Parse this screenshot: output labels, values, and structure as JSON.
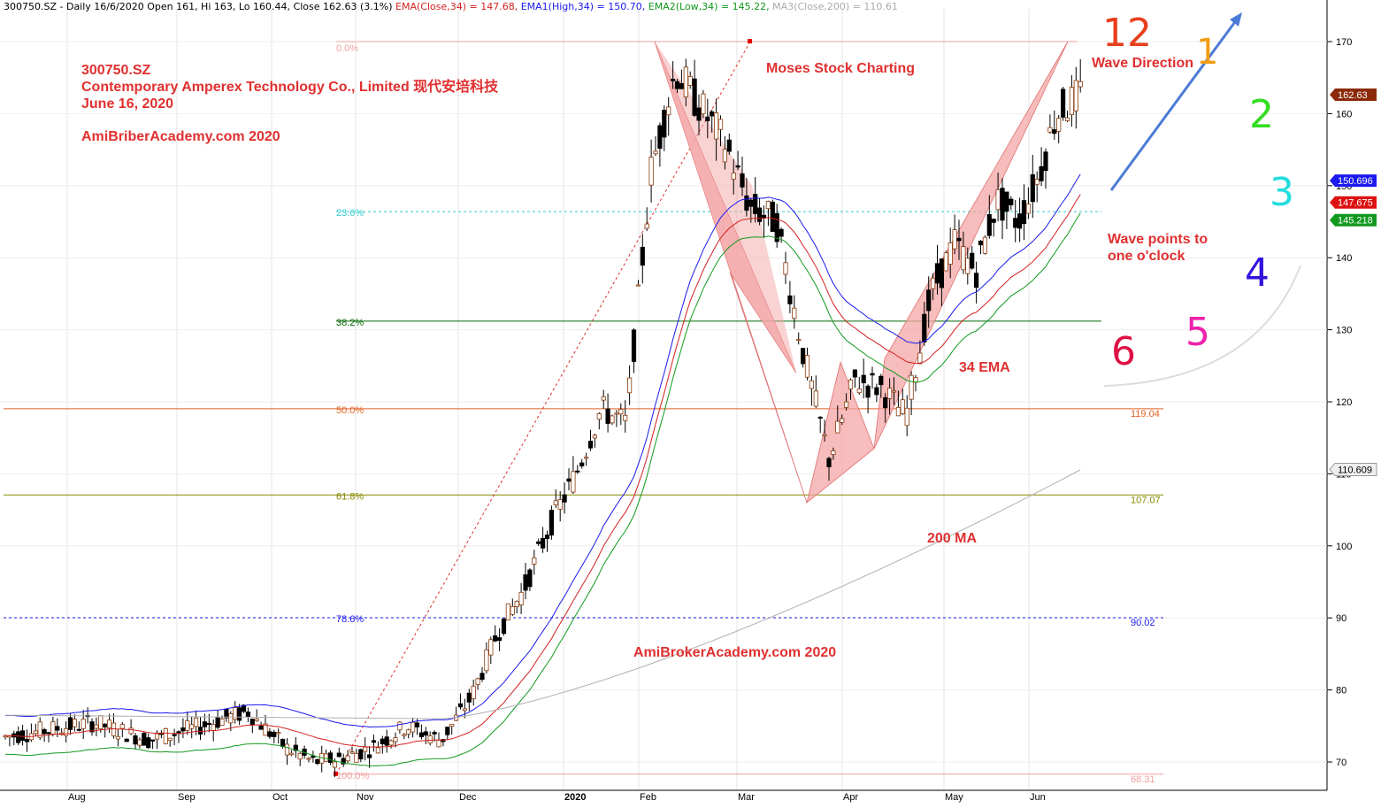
{
  "header": {
    "symbol_info": "300750.SZ - Daily 16/6/2020 Open 161, Hi 163, Lo 160.44, Close 162.63 (3.1%)",
    "ema": "EMA(Close,34) = 147.68,",
    "ema1": "EMA1(High,34) = 150.70,",
    "ema2": "EMA2(Low,34) = 145.22,",
    "ma3": "MA3(Close,200) = 110.61"
  },
  "annotations": {
    "ticker": "300750.SZ",
    "company": "Contemporary Amperex Technology Co., Limited 现代安培科技",
    "date": "June 16, 2020",
    "site1": "AmiBriberAcademy.com  2020",
    "site2": "AmiBrokerAcademy.com  2020",
    "moses": "Moses Stock Charting",
    "ema34": "34 EMA",
    "ma200": "200 MA",
    "wave_direction": "Wave Direction",
    "wave_points_1": "Wave points to",
    "wave_points_2": "one o'clock"
  },
  "clock": [
    {
      "label": "12",
      "color": "#e8401c"
    },
    {
      "label": "1",
      "color": "#f39c12"
    },
    {
      "label": "2",
      "color": "#33dd22"
    },
    {
      "label": "3",
      "color": "#22dddd"
    },
    {
      "label": "4",
      "color": "#3311dd"
    },
    {
      "label": "5",
      "color": "#ee22aa"
    },
    {
      "label": "6",
      "color": "#dd1144"
    }
  ],
  "colors": {
    "ema": "#d42020",
    "ema1": "#1a1aee",
    "ema2": "#11991e",
    "ma200": "#b0b0b0",
    "pattern_fill": "#f4a5a5",
    "annotation": "#e03030"
  },
  "chart_data": {
    "type": "candlestick",
    "ylim": [
      67,
      176
    ],
    "yticks": [
      70,
      80,
      90,
      100,
      110,
      120,
      130,
      140,
      150,
      160,
      170
    ],
    "months": [
      "Aug",
      "Sep",
      "Oct",
      "Nov",
      "Dec",
      "2020",
      "Feb",
      "Mar",
      "Apr",
      "May",
      "Jun"
    ],
    "price_path": [
      [
        "Jul",
        73.5
      ],
      [
        "Aug",
        75.5
      ],
      [
        "Aug",
        73
      ],
      [
        "Sep",
        75
      ],
      [
        "Sep",
        77
      ],
      [
        "Oct",
        72
      ],
      [
        "Oct",
        70
      ],
      [
        "Oct",
        70.5
      ],
      [
        "Nov",
        72
      ],
      [
        "Nov",
        75
      ],
      [
        "Nov",
        73
      ],
      [
        "Dec",
        79
      ],
      [
        "Dec",
        88
      ],
      [
        "Dec",
        94
      ],
      [
        "Dec",
        103
      ],
      [
        "Jan",
        110
      ],
      [
        "Jan",
        119
      ],
      [
        "Jan",
        117
      ],
      [
        "Feb",
        152
      ],
      [
        "Feb",
        166
      ],
      [
        "Feb",
        161
      ],
      [
        "Feb",
        156
      ],
      [
        "Mar",
        147
      ],
      [
        "Mar",
        145
      ],
      [
        "Mar",
        127
      ],
      [
        "Mar",
        112
      ],
      [
        "Apr",
        123
      ],
      [
        "Apr",
        122
      ],
      [
        "Apr",
        118
      ],
      [
        "Apr",
        135
      ],
      [
        "May",
        142
      ],
      [
        "May",
        138
      ],
      [
        "May",
        148
      ],
      [
        "May",
        145
      ],
      [
        "Jun",
        151
      ],
      [
        "Jun",
        160
      ],
      [
        "Jun",
        162.63
      ]
    ],
    "series": [
      {
        "name": "EMA(Close,34)",
        "last": 147.675
      },
      {
        "name": "EMA1(High,34)",
        "last": 150.696
      },
      {
        "name": "EMA2(Low,34)",
        "last": 145.218
      },
      {
        "name": "MA3(Close,200)",
        "last": 110.609
      }
    ],
    "last_close": 162.63,
    "price_tags": [
      "162.63",
      "150.696",
      "147.675",
      "145.218",
      "110.609"
    ],
    "fibonacci": [
      {
        "label": "0.0%",
        "price": 170.0,
        "value_label": ""
      },
      {
        "label": "23.6%",
        "price": 146.4,
        "value_label": ""
      },
      {
        "label": "38.2%",
        "price": 131.2,
        "value_label": ""
      },
      {
        "label": "50.0%",
        "price": 119.04,
        "value_label": "119.04"
      },
      {
        "label": "61.8%",
        "price": 107.07,
        "value_label": "107.07"
      },
      {
        "label": "78.6%",
        "price": 90.02,
        "value_label": "90.02"
      },
      {
        "label": "100.0%",
        "price": 68.31,
        "value_label": "68.31"
      }
    ],
    "pattern_points": [
      [
        "Feb",
        170
      ],
      [
        "Mar",
        106
      ],
      [
        "Apr",
        113.5
      ],
      [
        "Jun",
        170
      ]
    ]
  }
}
